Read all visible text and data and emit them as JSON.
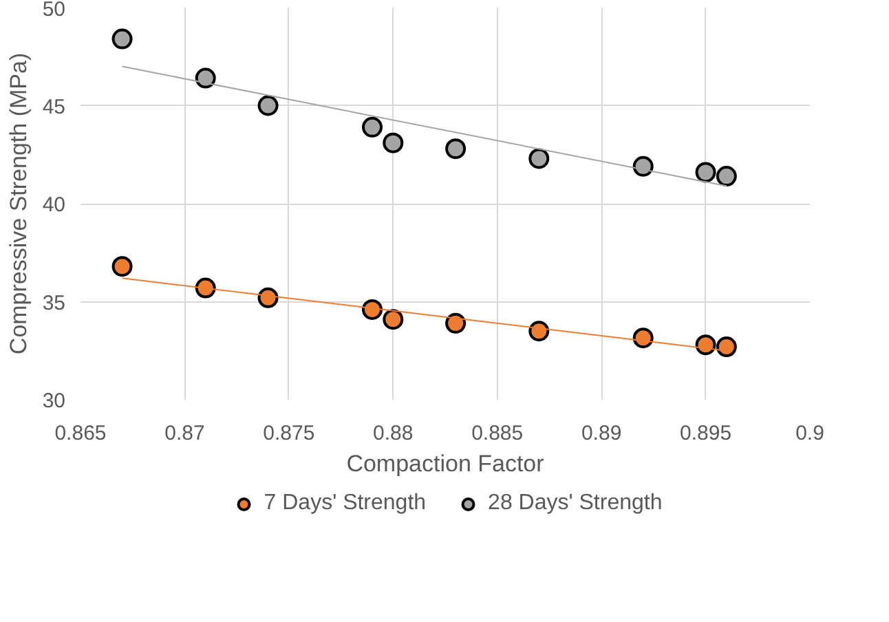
{
  "chart_data": {
    "type": "scatter",
    "xlabel": "Compaction Factor",
    "ylabel": "Compressive Strength (MPa)",
    "xlim": [
      0.865,
      0.9
    ],
    "ylim": [
      30,
      50
    ],
    "xticks": [
      0.865,
      0.87,
      0.875,
      0.88,
      0.885,
      0.89,
      0.895,
      0.9
    ],
    "yticks": [
      30,
      35,
      40,
      45,
      50
    ],
    "grid": true,
    "legend": "bottom",
    "marker": "circle",
    "series": [
      {
        "name": "7 Days' Strength",
        "color": "#ed7d31",
        "x": [
          0.867,
          0.871,
          0.874,
          0.879,
          0.88,
          0.883,
          0.887,
          0.892,
          0.895,
          0.896
        ],
        "values": [
          36.8,
          35.7,
          35.2,
          34.6,
          34.1,
          33.9,
          33.5,
          33.15,
          32.8,
          32.7
        ]
      },
      {
        "name": "28 Days' Strength",
        "color": "#a5a5a5",
        "x": [
          0.867,
          0.871,
          0.874,
          0.879,
          0.88,
          0.883,
          0.887,
          0.892,
          0.895,
          0.896
        ],
        "values": [
          48.4,
          46.4,
          45.0,
          43.9,
          43.1,
          42.8,
          42.3,
          41.9,
          41.6,
          41.4
        ]
      },
      {
        "type": "line",
        "marker": "none",
        "color": "#ed7d31",
        "x": [
          0.867,
          0.896
        ],
        "values": [
          36.2,
          32.5
        ]
      },
      {
        "type": "line",
        "marker": "none",
        "color": "#a5a5a5",
        "x": [
          0.867,
          0.896
        ],
        "values": [
          47.0,
          40.9
        ]
      }
    ]
  }
}
